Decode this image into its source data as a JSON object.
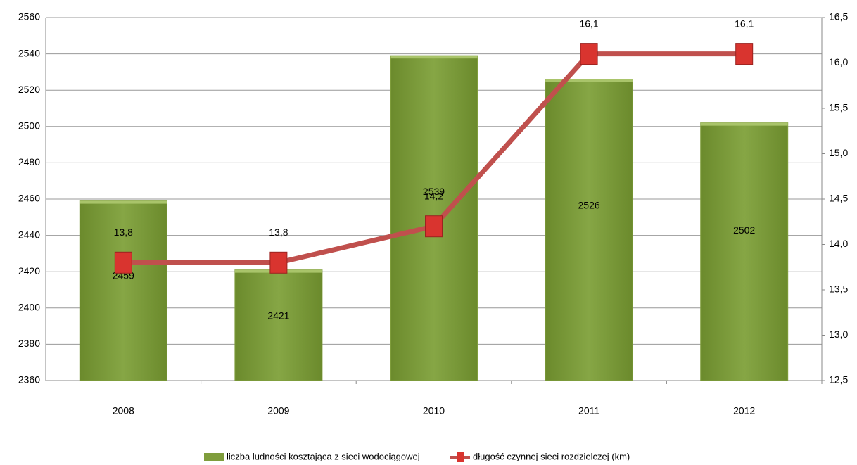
{
  "chart_data": {
    "type": "bar",
    "categories": [
      "2008",
      "2009",
      "2010",
      "2011",
      "2012"
    ],
    "series": [
      {
        "name": "liczba ludności kosztająca z sieci wodociągowej",
        "type": "bar",
        "color": "#7f9d3c",
        "values": [
          2459,
          2421,
          2539,
          2526,
          2502
        ]
      },
      {
        "name": "długość czynnej sieci rozdzielczej (km)",
        "type": "line",
        "axis": "y2",
        "color": "#c0504d",
        "values": [
          13.8,
          13.8,
          14.2,
          16.1,
          16.1
        ],
        "value_labels": [
          "13,8",
          "13,8",
          "14,2",
          "16,1",
          "16,1"
        ]
      }
    ],
    "ylim": [
      2360,
      2560
    ],
    "yticks": [
      2360,
      2380,
      2400,
      2420,
      2440,
      2460,
      2480,
      2500,
      2520,
      2540,
      2560
    ],
    "y2lim": [
      12.5,
      16.5
    ],
    "y2ticks": [
      {
        "value": 12.5,
        "label": "12,5"
      },
      {
        "value": 13,
        "label": "13,0"
      },
      {
        "value": 13.5,
        "label": "13,5"
      },
      {
        "value": 14,
        "label": "14,0"
      },
      {
        "value": 14.5,
        "label": "14,5"
      },
      {
        "value": 15,
        "label": "15,0"
      },
      {
        "value": 15.5,
        "label": "15,5"
      },
      {
        "value": 16,
        "label": "16,0"
      },
      {
        "value": 16.5,
        "label": "16,5"
      }
    ],
    "grid": true,
    "legend": "bottom"
  }
}
